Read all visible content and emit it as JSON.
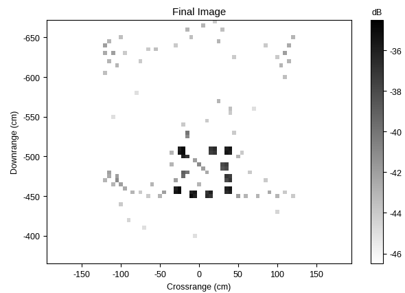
{
  "chart_data": {
    "type": "heatmap",
    "title": "Final Image",
    "x_label": "Crossrange (cm)",
    "y_label": "Downrange (cm)",
    "xlim": [
      -195,
      195
    ],
    "ylim": [
      -365,
      -672
    ],
    "xticks": [
      -150,
      -100,
      -50,
      0,
      50,
      100,
      150
    ],
    "yticks": [
      -650,
      -600,
      -550,
      -500,
      -450,
      -400
    ],
    "colorbar": {
      "label": "dB",
      "range": [
        -46.5,
        -34.5
      ],
      "ticks": [
        -46,
        -44,
        -42,
        -40,
        -38,
        -36
      ]
    },
    "cells": [
      [
        -25,
        -510,
        -36
      ],
      [
        -20,
        -510,
        -35
      ],
      [
        -25,
        -505,
        -35.5
      ],
      [
        -20,
        -505,
        -35
      ],
      [
        -20,
        -500,
        -36
      ],
      [
        -15,
        -500,
        -37
      ],
      [
        15,
        -510,
        -37
      ],
      [
        20,
        -510,
        -36.5
      ],
      [
        15,
        -505,
        -37.5
      ],
      [
        20,
        -505,
        -37
      ],
      [
        35,
        -510,
        -36
      ],
      [
        40,
        -510,
        -35.5
      ],
      [
        35,
        -505,
        -35.5
      ],
      [
        40,
        -505,
        -36
      ],
      [
        30,
        -490,
        -38
      ],
      [
        35,
        -490,
        -37.5
      ],
      [
        30,
        -485,
        -38.5
      ],
      [
        35,
        -485,
        -38
      ],
      [
        35,
        -475,
        -37
      ],
      [
        40,
        -475,
        -37.5
      ],
      [
        35,
        -470,
        -38
      ],
      [
        40,
        -470,
        -37
      ],
      [
        -30,
        -460,
        -36
      ],
      [
        -25,
        -460,
        -35
      ],
      [
        -30,
        -455,
        -35.5
      ],
      [
        -25,
        -455,
        -35
      ],
      [
        -10,
        -455,
        -36
      ],
      [
        -5,
        -455,
        -35.5
      ],
      [
        -10,
        -450,
        -35
      ],
      [
        -5,
        -450,
        -36
      ],
      [
        10,
        -455,
        -37
      ],
      [
        15,
        -455,
        -36
      ],
      [
        10,
        -450,
        -36.5
      ],
      [
        15,
        -450,
        -37
      ],
      [
        35,
        -460,
        -36
      ],
      [
        40,
        -460,
        -35.5
      ],
      [
        35,
        -455,
        -36.5
      ],
      [
        40,
        -455,
        -36
      ],
      [
        -20,
        -480,
        -39
      ],
      [
        -15,
        -480,
        -40
      ],
      [
        -20,
        -475,
        -39.5
      ],
      [
        -5,
        -495,
        -42
      ],
      [
        0,
        -490,
        -41
      ],
      [
        5,
        -485,
        -42
      ],
      [
        10,
        -480,
        -42.5
      ],
      [
        -35,
        -490,
        -43
      ],
      [
        -30,
        -470,
        -42
      ],
      [
        -15,
        -530,
        -40
      ],
      [
        -15,
        -525,
        -41
      ],
      [
        50,
        -500,
        -43
      ],
      [
        55,
        -505,
        -44
      ],
      [
        50,
        -450,
        -42
      ],
      [
        60,
        -450,
        -43
      ],
      [
        -45,
        -455,
        -42
      ],
      [
        -50,
        -450,
        -43
      ],
      [
        25,
        -570,
        -43
      ],
      [
        40,
        -560,
        -43.5
      ],
      [
        40,
        -555,
        -44
      ],
      [
        10,
        -545,
        -44
      ],
      [
        -35,
        -505,
        -43
      ],
      [
        0,
        -465,
        -43
      ],
      [
        -115,
        -480,
        -42
      ],
      [
        -115,
        -475,
        -42.5
      ],
      [
        -105,
        -475,
        -42
      ],
      [
        -105,
        -470,
        -41
      ],
      [
        -100,
        -465,
        -42
      ],
      [
        -110,
        -465,
        -43
      ],
      [
        -95,
        -460,
        -42.5
      ],
      [
        -120,
        -470,
        -43
      ],
      [
        -85,
        -455,
        -43
      ],
      [
        -75,
        -455,
        -44
      ],
      [
        -65,
        -450,
        -44
      ],
      [
        -60,
        -465,
        -43
      ],
      [
        -100,
        -440,
        -44
      ],
      [
        75,
        -450,
        -43
      ],
      [
        90,
        -455,
        -42.5
      ],
      [
        100,
        -450,
        -43
      ],
      [
        110,
        -455,
        -44
      ],
      [
        120,
        -450,
        -44
      ],
      [
        85,
        -470,
        -44
      ],
      [
        65,
        -480,
        -44
      ],
      [
        -120,
        -640,
        -42
      ],
      [
        -120,
        -630,
        -42.5
      ],
      [
        -115,
        -620,
        -43
      ],
      [
        -115,
        -645,
        -43
      ],
      [
        -110,
        -630,
        -42
      ],
      [
        -105,
        -615,
        -43
      ],
      [
        -100,
        -650,
        -43.5
      ],
      [
        -95,
        -630,
        -44
      ],
      [
        -75,
        -620,
        -44
      ],
      [
        -65,
        -635,
        -44
      ],
      [
        -55,
        -635,
        -43.5
      ],
      [
        -120,
        -605,
        -43.5
      ],
      [
        105,
        -615,
        -43
      ],
      [
        110,
        -630,
        -42
      ],
      [
        115,
        -640,
        -42.5
      ],
      [
        120,
        -650,
        -43
      ],
      [
        110,
        -600,
        -43.5
      ],
      [
        100,
        -625,
        -44
      ],
      [
        85,
        -640,
        -44
      ],
      [
        115,
        -620,
        -43
      ],
      [
        -15,
        -660,
        -43
      ],
      [
        -10,
        -650,
        -43.5
      ],
      [
        5,
        -665,
        -43
      ],
      [
        20,
        -670,
        -44
      ],
      [
        25,
        -645,
        -43
      ],
      [
        30,
        -660,
        -43.5
      ],
      [
        45,
        -625,
        -44
      ],
      [
        -30,
        -640,
        -44
      ],
      [
        -20,
        -540,
        -44
      ],
      [
        45,
        -530,
        -44
      ],
      [
        -70,
        -410,
        -45
      ],
      [
        -90,
        -420,
        -44.5
      ],
      [
        100,
        -430,
        -44.5
      ],
      [
        -5,
        -400,
        -45
      ],
      [
        -80,
        -580,
        -45
      ],
      [
        70,
        -560,
        -45
      ],
      [
        -110,
        -550,
        -45
      ]
    ]
  }
}
